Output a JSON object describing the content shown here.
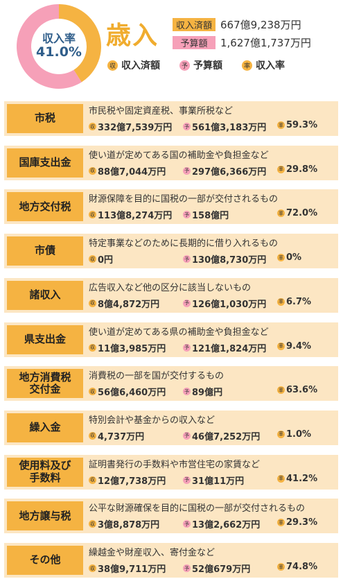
{
  "header": {
    "donut_label": "収入率",
    "donut_value": "41.0%",
    "title": "歳入",
    "revenue_badge": "収入済額",
    "revenue_amount": "667億9,238万円",
    "budget_badge": "予算額",
    "budget_amount": "1,627億1,737万円",
    "legend": {
      "revenue_icon": "収",
      "revenue_label": "収入済額",
      "budget_icon": "予",
      "budget_label": "予算額",
      "rate_icon": "率",
      "rate_label": "収入率"
    }
  },
  "colors": {
    "revenue": "#f5b342",
    "budget": "#f6a0b8",
    "row_bg": "#fce6c3",
    "donut_text": "#2e5d8a",
    "title": "#f0ac2e"
  },
  "chart_data": {
    "type": "pie",
    "values": [
      41.0,
      59.0
    ],
    "categories": [
      "収入率",
      ""
    ]
  },
  "icons": {
    "revenue": "収",
    "budget": "予",
    "rate": "率"
  },
  "rows": [
    {
      "name": "市税",
      "desc": "市民税や固定資産税、事業所税など",
      "revenue": "332億7,539万円",
      "budget": "561億3,183万円",
      "rate": "59.3%"
    },
    {
      "name": "国庫支出金",
      "desc": "使い道が定めてある国の補助金や負担金など",
      "revenue": "88億7,044万円",
      "budget": "297億6,366万円",
      "rate": "29.8%"
    },
    {
      "name": "地方交付税",
      "desc": "財源保障を目的に国税の一部が交付されるもの",
      "revenue": "113億8,274万円",
      "budget": "158億円",
      "rate": "72.0%"
    },
    {
      "name": "市債",
      "desc": "特定事業などのために長期的に借り入れるもの",
      "revenue": "0円",
      "budget": "130億8,730万円",
      "rate": "0%"
    },
    {
      "name": "諸収入",
      "desc": "広告収入など他の区分に該当しないもの",
      "revenue": "8億4,872万円",
      "budget": "126億1,030万円",
      "rate": "6.7%"
    },
    {
      "name": "県支出金",
      "desc": "使い道が定めてある県の補助金や負担金など",
      "revenue": "11億3,985万円",
      "budget": "121億1,824万円",
      "rate": "9.4%"
    },
    {
      "name": "地方消費税\n交付金",
      "desc": "消費税の一部を国が交付するもの",
      "revenue": "56億6,460万円",
      "budget": "89億円",
      "rate": "63.6%"
    },
    {
      "name": "繰入金",
      "desc": "特別会計や基金からの収入など",
      "revenue": "4,737万円",
      "budget": "46億7,252万円",
      "rate": "1.0%"
    },
    {
      "name": "使用料及び\n手数料",
      "desc": "証明書発行の手数料や市営住宅の家賃など",
      "revenue": "12億7,738万円",
      "budget": "31億11万円",
      "rate": "41.2%"
    },
    {
      "name": "地方譲与税",
      "desc": "公平な財源確保を目的に国税の一部が交付されるもの",
      "revenue": "3億8,878万円",
      "budget": "13億2,662万円",
      "rate": "29.3%"
    },
    {
      "name": "その他",
      "desc": "繰越金や財産収入、寄付金など",
      "revenue": "38億9,711万円",
      "budget": "52億679万円",
      "rate": "74.8%"
    }
  ]
}
